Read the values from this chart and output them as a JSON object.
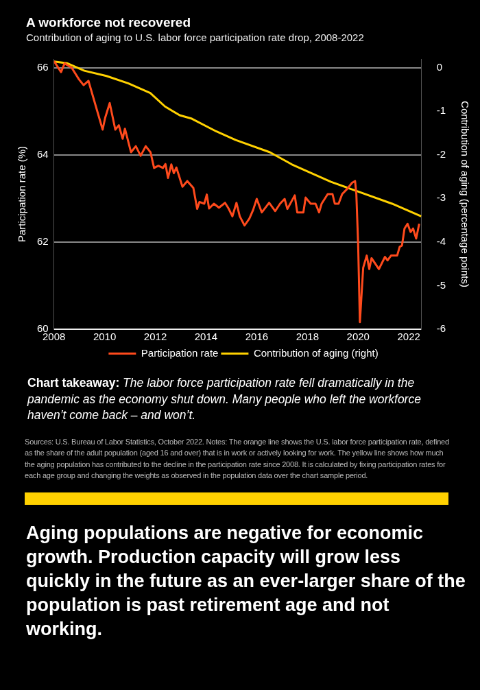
{
  "chart_data": {
    "type": "line",
    "title": "A workforce not recovered",
    "subtitle": "Contribution of aging to U.S. labor force participation rate drop, 2008-2022",
    "ylabel": "Participation rate (%)",
    "y2label": "Contribution of aging (percentage points)",
    "series": [
      {
        "name": "Participation rate",
        "color": "#ff4a1c",
        "x": [
          2008,
          2008.28,
          2008.42,
          2008.7,
          2008.99,
          2009.17,
          2009.36,
          2009.7,
          2009.92,
          2010.02,
          2010.2,
          2010.42,
          2010.56,
          2010.71,
          2010.8,
          2011.04,
          2011.23,
          2011.42,
          2011.62,
          2011.81,
          2011.95,
          2012.12,
          2012.3,
          2012.4,
          2012.5,
          2012.63,
          2012.73,
          2012.83,
          2013.07,
          2013.26,
          2013.5,
          2013.65,
          2013.74,
          2013.93,
          2014.03,
          2014.12,
          2014.31,
          2014.51,
          2014.75,
          2014.89,
          2015.04,
          2015.2,
          2015.33,
          2015.52,
          2015.71,
          2015.86,
          2016,
          2016.2,
          2016.49,
          2016.73,
          2016.92,
          2017.1,
          2017.21,
          2017.5,
          2017.6,
          2017.84,
          2017.93,
          2018.13,
          2018.32,
          2018.46,
          2018.56,
          2018.8,
          2018.99,
          2019.08,
          2019.23,
          2019.37,
          2019.57,
          2019.76,
          2019.88,
          2019.93,
          2020,
          2020.07,
          2020.2,
          2020.34,
          2020.44,
          2020.53,
          2020.82,
          2021.06,
          2021.16,
          2021.3,
          2021.54,
          2021.64,
          2021.73,
          2021.83,
          2021.95,
          2022.07,
          2022.17,
          2022.29,
          2022.41
        ],
        "values": [
          66.15,
          65.9,
          66.1,
          66,
          65.73,
          65.6,
          65.7,
          65.02,
          64.58,
          64.85,
          65.19,
          64.58,
          64.68,
          64.37,
          64.6,
          64.06,
          64.2,
          63.98,
          64.2,
          64.06,
          63.7,
          63.75,
          63.7,
          63.79,
          63.47,
          63.78,
          63.58,
          63.71,
          63.27,
          63.4,
          63.24,
          62.76,
          62.92,
          62.88,
          63.09,
          62.77,
          62.88,
          62.79,
          62.9,
          62.77,
          62.59,
          62.9,
          62.59,
          62.38,
          62.54,
          62.74,
          62.99,
          62.68,
          62.9,
          62.71,
          62.88,
          62.99,
          62.76,
          63.07,
          62.68,
          62.68,
          63.02,
          62.88,
          62.88,
          62.68,
          62.88,
          63.1,
          63.1,
          62.88,
          62.88,
          63.1,
          63.22,
          63.36,
          63.4,
          63.1,
          61.97,
          60.16,
          61.41,
          61.69,
          61.38,
          61.63,
          61.38,
          61.66,
          61.58,
          61.69,
          61.69,
          61.89,
          61.92,
          62.31,
          62.42,
          62.23,
          62.31,
          62.08,
          62.42
        ]
      },
      {
        "name": "Contribution of aging (right)",
        "color": "#ffd100",
        "axis": "y2",
        "x": [
          2008,
          2008.53,
          2009.2,
          2010.07,
          2010.94,
          2011.8,
          2012.38,
          2012.96,
          2013.44,
          2014.4,
          2015.17,
          2016.52,
          2017.39,
          2018.93,
          2019.99,
          2021.34,
          2022.49
        ],
        "values": [
          0.14,
          0.1,
          -0.07,
          -0.19,
          -0.36,
          -0.58,
          -0.89,
          -1.09,
          -1.17,
          -1.46,
          -1.66,
          -1.94,
          -2.22,
          -2.62,
          -2.84,
          -3.12,
          -3.41
        ]
      }
    ],
    "xlim": [
      2008,
      2022.5
    ],
    "xticks": [
      2008,
      2010,
      2012,
      2014,
      2016,
      2018,
      2020,
      2022
    ],
    "ylim": [
      60,
      66.2
    ],
    "yticks": [
      60,
      62,
      64,
      66
    ],
    "y2lim": [
      -6,
      0.2
    ],
    "y2ticks": [
      -6,
      -5,
      -4,
      -3,
      -2,
      -1,
      0
    ],
    "grid": "y",
    "legend": "bottom",
    "annotations": [
      "Chart takeaway:",
      "The labor force participation rate fell dramatically in the pandemic as the economy shut down. Many people who left the workforce haven’t come back – and won’t.",
      "Sources: U.S. Bureau of Labor Statistics, October 2022. Notes: The orange line shows the U.S. labor force participation rate, defined as the share of the adult population (aged 16 and over) that is in work or actively looking for work. The yellow line shows how much the aging population has contributed to the decline in the participation rate since 2008.  It is calculated by fixing participation rates for each age group and changing the weights as observed in the population data over the chart sample period.",
      "Aging populations are negative for economic growth. Production capacity will grow less quickly in the future as an ever-larger share of the population is past retirement age and not working."
    ]
  }
}
